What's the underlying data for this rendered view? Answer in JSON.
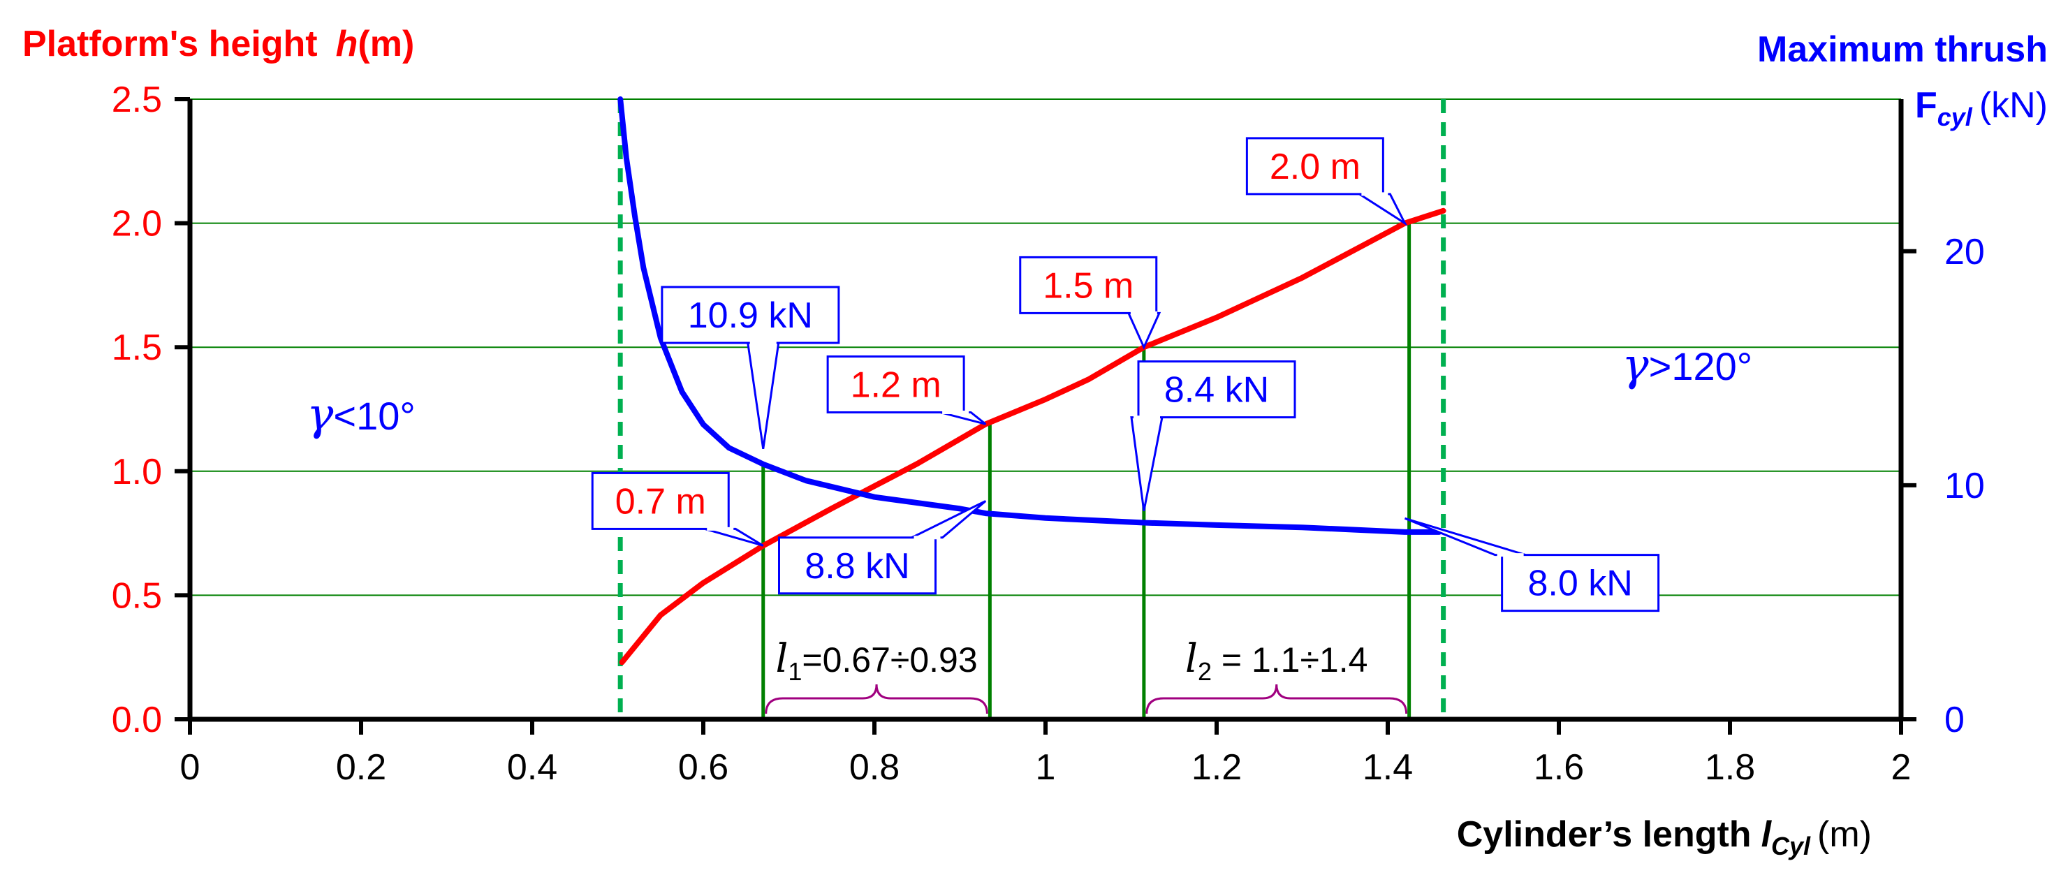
{
  "chart_data": {
    "type": "line",
    "left_axis_title": "Platform's height",
    "left_axis_symbol": "h",
    "left_axis_unit": "(m)",
    "right_axis_title": "Maximum thrush",
    "right_axis_symbol": "F",
    "right_axis_symbol_sub": "cyl",
    "right_axis_unit": "(kN)",
    "x_axis_title": "Cylinder’s length",
    "x_axis_symbol": "l",
    "x_axis_symbol_sub": "Cyl",
    "x_axis_unit": "(m)",
    "xlim": [
      0,
      2
    ],
    "y_left_lim": [
      0,
      2.5
    ],
    "y_right_lim": [
      0,
      26.5
    ],
    "x_ticks": [
      "0",
      "0.2",
      "0.4",
      "0.6",
      "0.8",
      "1",
      "1.2",
      "1.4",
      "1.6",
      "1.8",
      "2"
    ],
    "x_tick_values": [
      0,
      0.2,
      0.4,
      0.6,
      0.8,
      1.0,
      1.2,
      1.4,
      1.6,
      1.8,
      2.0
    ],
    "y_left_ticks": [
      "0.0",
      "0.5",
      "1.0",
      "1.5",
      "2.0",
      "2.5"
    ],
    "y_left_tick_values": [
      0,
      0.5,
      1.0,
      1.5,
      2.0,
      2.5
    ],
    "y_right_ticks": [
      "0",
      "10",
      "20"
    ],
    "y_right_tick_values": [
      0,
      10,
      20
    ],
    "series": [
      {
        "axis": "left",
        "color": "#ff0000",
        "x": [
          0.505,
          0.55,
          0.6,
          0.67,
          0.75,
          0.8,
          0.85,
          0.93,
          1.0,
          1.05,
          1.115,
          1.2,
          1.3,
          1.42,
          1.465
        ],
        "y": [
          0.23,
          0.42,
          0.55,
          0.7,
          0.85,
          0.94,
          1.03,
          1.19,
          1.29,
          1.37,
          1.5,
          1.62,
          1.78,
          2.0,
          2.05
        ]
      },
      {
        "axis": "right",
        "color": "#0000ff",
        "x": [
          0.503,
          0.51,
          0.52,
          0.53,
          0.55,
          0.575,
          0.6,
          0.63,
          0.67,
          0.72,
          0.8,
          0.9,
          0.93,
          1.0,
          1.115,
          1.2,
          1.3,
          1.42,
          1.46
        ],
        "y": [
          26.5,
          24.0,
          21.5,
          19.3,
          16.3,
          14.0,
          12.6,
          11.6,
          10.9,
          10.2,
          9.5,
          9.0,
          8.8,
          8.6,
          8.4,
          8.3,
          8.2,
          8.0,
          8.0
        ]
      }
    ],
    "boundaries": [
      {
        "x": 0.503,
        "color": "#00b050",
        "style": "dashed"
      },
      {
        "x": 1.465,
        "color": "#00b050",
        "style": "dashed"
      }
    ],
    "markers": [
      {
        "x": 0.67,
        "color": "#008000"
      },
      {
        "x": 0.935,
        "color": "#008000"
      },
      {
        "x": 1.115,
        "color": "#008000"
      },
      {
        "x": 1.425,
        "color": "#008000"
      }
    ],
    "region_labels": [
      {
        "x": 0.2,
        "y": 1.0,
        "text": "<10°",
        "symbol": "γ",
        "color": "#0000ff"
      },
      {
        "x": 1.75,
        "y": 1.2,
        "text": ">120°",
        "symbol": "γ",
        "color": "#0000ff"
      }
    ],
    "range_labels": [
      {
        "x_from": 0.67,
        "x_to": 0.935,
        "symbol": "l",
        "sub": "1",
        "text": "=0.67÷0.93"
      },
      {
        "x_from": 1.115,
        "x_to": 1.425,
        "symbol": "l",
        "sub": "2",
        "text": " = 1.1÷1.4"
      }
    ],
    "callouts": [
      {
        "text": "0.7 m",
        "color": "#ff0000",
        "point_x": 0.67,
        "point_y_left": 0.7,
        "box_x": 0.55,
        "box_y_left": 0.88
      },
      {
        "text": "1.2 m",
        "color": "#ff0000",
        "point_x": 0.93,
        "point_y_left": 1.19,
        "box_x": 0.825,
        "box_y_left": 1.35
      },
      {
        "text": "1.5 m",
        "color": "#ff0000",
        "point_x": 1.115,
        "point_y_left": 1.5,
        "box_x": 1.05,
        "box_y_left": 1.75
      },
      {
        "text": "2.0 m",
        "color": "#ff0000",
        "point_x": 1.42,
        "point_y_left": 2.0,
        "box_x": 1.315,
        "box_y_left": 2.23
      },
      {
        "text": "10.9 kN",
        "color": "#0000ff",
        "point_x": 0.67,
        "point_y_left": 1.09,
        "box_x": 0.655,
        "box_y_left": 1.63
      },
      {
        "text": "8.8 kN",
        "color": "#0000ff",
        "point_x": 0.93,
        "point_y_left": 0.88,
        "box_x": 0.78,
        "box_y_left": 0.62
      },
      {
        "text": "8.4 kN",
        "color": "#0000ff",
        "point_x": 1.115,
        "point_y_left": 0.84,
        "box_x": 1.2,
        "box_y_left": 1.33
      },
      {
        "text": "8.0 kN",
        "color": "#0000ff",
        "point_x": 1.42,
        "point_y_left": 0.81,
        "box_x": 1.625,
        "box_y_left": 0.55
      }
    ]
  }
}
